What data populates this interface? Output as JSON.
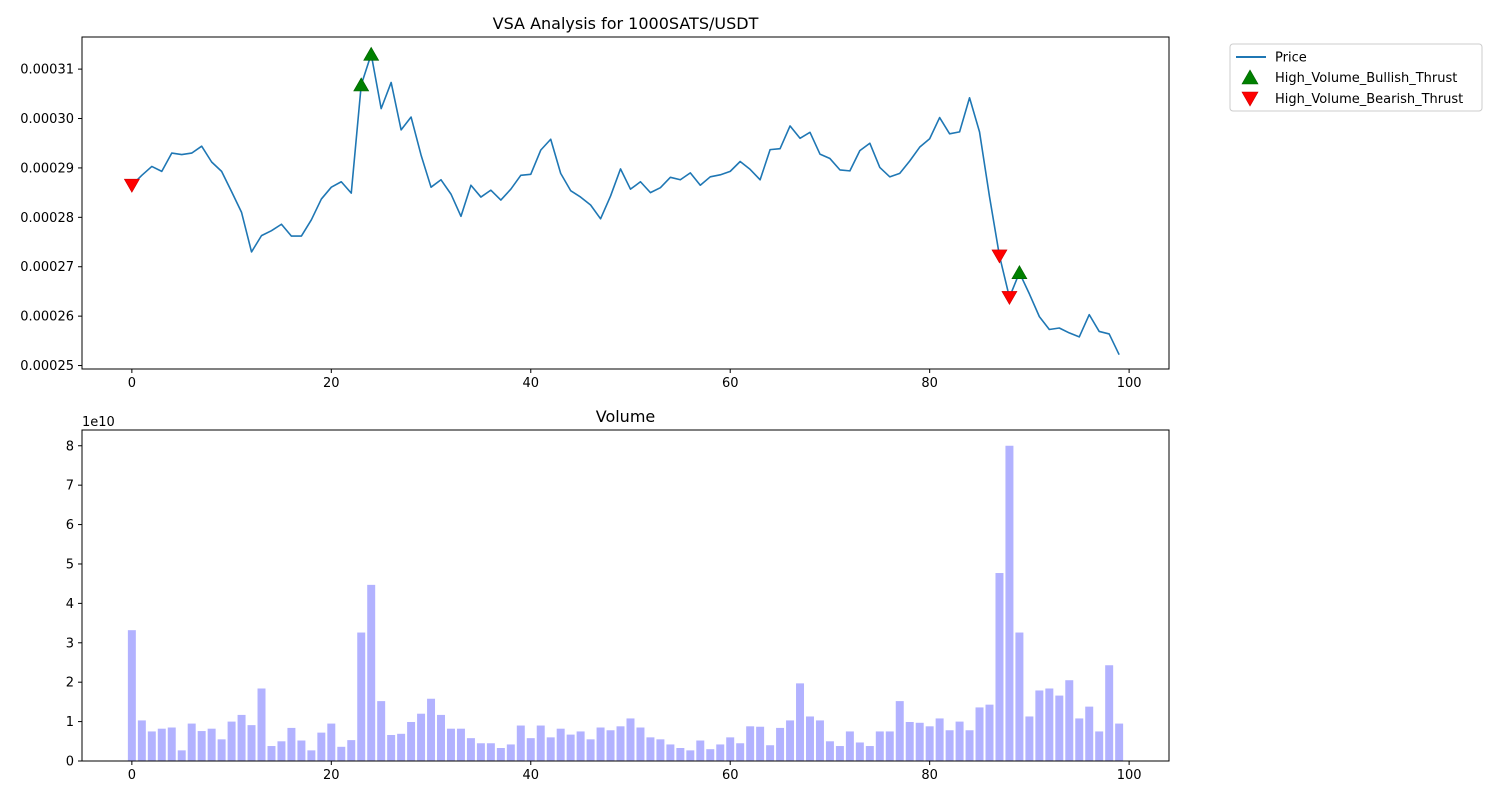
{
  "chart_data": [
    {
      "type": "line",
      "title": "VSA Analysis for 1000SATS/USDT",
      "xlabel": "",
      "ylabel": "",
      "xlim": [
        -5,
        104
      ],
      "ylim": [
        0.0002493,
        0.0003165
      ],
      "x_ticks": [
        0,
        20,
        40,
        60,
        80,
        100
      ],
      "y_ticks": [
        0.00025,
        0.00026,
        0.00027,
        0.00028,
        0.00029,
        0.0003,
        0.00031
      ],
      "y_tick_labels": [
        "0.00025",
        "0.00026",
        "0.00027",
        "0.00028",
        "0.00029",
        "0.00030",
        "0.00031"
      ],
      "grid": false,
      "legend_position": "outside-top-right",
      "series": [
        {
          "name": "Price",
          "kind": "line",
          "color": "#1f77b4",
          "values": [
            0.0002865,
            0.0002885,
            0.0002903,
            0.0002893,
            0.000293,
            0.0002927,
            0.000293,
            0.0002944,
            0.0002912,
            0.0002893,
            0.0002852,
            0.000281,
            0.000273,
            0.0002763,
            0.0002773,
            0.0002786,
            0.0002762,
            0.0002762,
            0.0002795,
            0.0002837,
            0.0002861,
            0.0002872,
            0.0002849,
            0.0003068,
            0.000313,
            0.000302,
            0.0003073,
            0.0002977,
            0.0003003,
            0.0002926,
            0.0002861,
            0.0002876,
            0.0002847,
            0.0002802,
            0.0002865,
            0.0002841,
            0.0002855,
            0.0002835,
            0.0002857,
            0.0002885,
            0.0002887,
            0.0002936,
            0.0002958,
            0.0002889,
            0.0002854,
            0.0002841,
            0.0002825,
            0.0002797,
            0.0002843,
            0.0002898,
            0.0002857,
            0.0002872,
            0.000285,
            0.000286,
            0.0002881,
            0.0002876,
            0.000289,
            0.0002865,
            0.0002882,
            0.0002886,
            0.0002893,
            0.0002913,
            0.0002897,
            0.0002876,
            0.0002937,
            0.0002939,
            0.0002985,
            0.000296,
            0.0002972,
            0.0002928,
            0.0002919,
            0.0002896,
            0.0002894,
            0.0002935,
            0.000295,
            0.0002901,
            0.0002882,
            0.0002889,
            0.0002914,
            0.0002942,
            0.0002959,
            0.0003002,
            0.0002969,
            0.0002973,
            0.0003042,
            0.0002973,
            0.0002842,
            0.0002722,
            0.0002638,
            0.0002688,
            0.0002645,
            0.0002599,
            0.0002573,
            0.0002576,
            0.0002566,
            0.0002558,
            0.0002603,
            0.0002569,
            0.0002564,
            0.0002522
          ]
        },
        {
          "name": "High_Volume_Bullish_Thrust",
          "kind": "marker",
          "marker": "triangle-up",
          "color": "#008000",
          "x": [
            23,
            24,
            89
          ],
          "values": [
            0.0003068,
            0.000313,
            0.0002688
          ]
        },
        {
          "name": "High_Volume_Bearish_Thrust",
          "kind": "marker",
          "marker": "triangle-down",
          "color": "#ff0000",
          "x": [
            0,
            87,
            88
          ],
          "values": [
            0.0002865,
            0.0002722,
            0.0002638
          ]
        }
      ]
    },
    {
      "type": "bar",
      "title": "Volume",
      "xlabel": "",
      "ylabel": "",
      "xlim": [
        -5,
        104
      ],
      "ylim": [
        0,
        8.4
      ],
      "y_scale_label": "1e10",
      "x_ticks": [
        0,
        20,
        40,
        60,
        80,
        100
      ],
      "y_ticks": [
        0,
        1,
        2,
        3,
        4,
        5,
        6,
        7,
        8
      ],
      "grid": false,
      "color": "#b2b2ff",
      "values": [
        3.32,
        1.03,
        0.75,
        0.82,
        0.85,
        0.27,
        0.95,
        0.76,
        0.82,
        0.55,
        1.0,
        1.17,
        0.91,
        1.84,
        0.38,
        0.5,
        0.84,
        0.52,
        0.27,
        0.72,
        0.95,
        0.36,
        0.53,
        3.26,
        4.47,
        1.52,
        0.66,
        0.69,
        0.99,
        1.2,
        1.58,
        1.17,
        0.82,
        0.82,
        0.58,
        0.45,
        0.45,
        0.33,
        0.42,
        0.9,
        0.58,
        0.9,
        0.6,
        0.82,
        0.67,
        0.75,
        0.55,
        0.85,
        0.78,
        0.88,
        1.08,
        0.85,
        0.6,
        0.55,
        0.42,
        0.33,
        0.27,
        0.52,
        0.3,
        0.42,
        0.6,
        0.45,
        0.88,
        0.87,
        0.4,
        0.84,
        1.03,
        1.97,
        1.13,
        1.03,
        0.5,
        0.38,
        0.75,
        0.47,
        0.38,
        0.75,
        0.75,
        1.52,
        0.99,
        0.97,
        0.88,
        1.08,
        0.78,
        1.0,
        0.78,
        1.36,
        1.43,
        4.77,
        8.0,
        3.26,
        1.13,
        1.79,
        1.84,
        1.66,
        2.05,
        1.08,
        1.38,
        0.75,
        2.43,
        0.95
      ]
    }
  ]
}
